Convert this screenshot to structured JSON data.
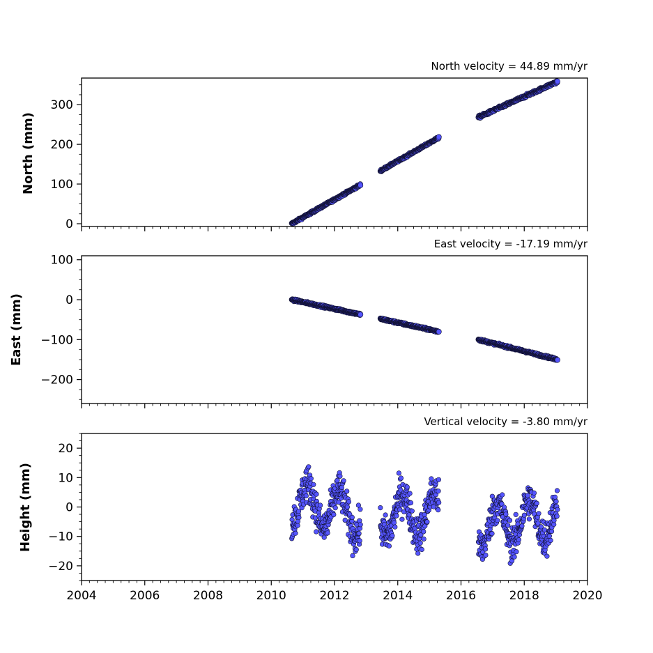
{
  "chart_data": [
    {
      "type": "scatter",
      "title": "North velocity = 44.89 mm/yr",
      "ylabel": "North (mm)",
      "xlim": [
        2004,
        2020
      ],
      "ylim": [
        -7,
        367
      ],
      "yticks": [
        0,
        100,
        200,
        300
      ],
      "xticks": [
        2004,
        2006,
        2008,
        2010,
        2012,
        2014,
        2016,
        2018,
        2020
      ],
      "show_xticklabels": false,
      "segments": [
        {
          "x_start": 2010.65,
          "x_end": 2012.82,
          "y_start": 0,
          "y_end": 98,
          "scatter": 3
        },
        {
          "x_start": 2013.45,
          "x_end": 2015.3,
          "y_start": 133,
          "y_end": 217,
          "scatter": 3
        },
        {
          "x_start": 2016.55,
          "x_end": 2019.05,
          "y_start": 268,
          "y_end": 358,
          "scatter": 4
        }
      ]
    },
    {
      "type": "scatter",
      "title": "East velocity = -17.19 mm/yr",
      "ylabel": "East (mm)",
      "xlim": [
        2004,
        2020
      ],
      "ylim": [
        -260,
        110
      ],
      "yticks": [
        -200,
        -100,
        0,
        100
      ],
      "xticks": [
        2004,
        2006,
        2008,
        2010,
        2012,
        2014,
        2016,
        2018,
        2020
      ],
      "show_xticklabels": false,
      "segments": [
        {
          "x_start": 2010.65,
          "x_end": 2012.82,
          "y_start": 0,
          "y_end": -37,
          "scatter": 3
        },
        {
          "x_start": 2013.45,
          "x_end": 2015.3,
          "y_start": -48,
          "y_end": -80,
          "scatter": 3
        },
        {
          "x_start": 2016.55,
          "x_end": 2019.05,
          "y_start": -100,
          "y_end": -150,
          "scatter": 3
        }
      ]
    },
    {
      "type": "scatter",
      "title": "Vertical velocity = -3.80 mm/yr",
      "ylabel": "Height (mm)",
      "xlim": [
        2004,
        2020
      ],
      "ylim": [
        -25,
        25
      ],
      "yticks": [
        -20,
        -10,
        0,
        10,
        20
      ],
      "xticks": [
        2004,
        2006,
        2008,
        2010,
        2012,
        2014,
        2016,
        2018,
        2020
      ],
      "show_xticklabels": true,
      "segments": [
        {
          "x_start": 2010.65,
          "x_end": 2012.82,
          "y_start": 2,
          "y_end": -3,
          "scatter": 12
        },
        {
          "x_start": 2013.45,
          "x_end": 2015.3,
          "y_start": -3,
          "y_end": -2,
          "scatter": 11
        },
        {
          "x_start": 2016.55,
          "x_end": 2019.05,
          "y_start": -7,
          "y_end": -3,
          "scatter": 12
        }
      ]
    }
  ],
  "colors": {
    "marker_fill": "#5555ff",
    "marker_edge": "#111133"
  }
}
